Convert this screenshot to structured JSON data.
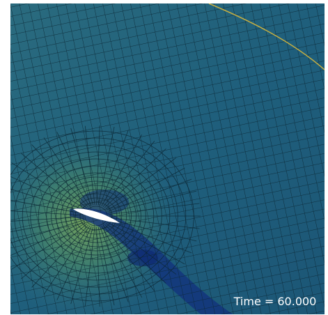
{
  "annotation": {
    "time_label": "Time = 60.000"
  }
}
